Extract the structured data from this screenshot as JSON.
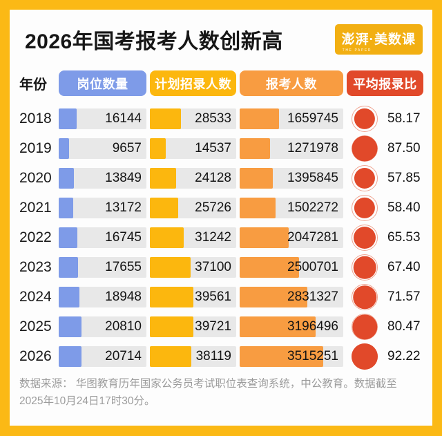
{
  "title": "2026年国考报考人数创新高",
  "logo": {
    "main": "澎湃·美数课",
    "sub": "THE PAPER"
  },
  "columns": {
    "year_label": "年份",
    "headers": [
      {
        "label": "岗位数量",
        "color": "#7E9BE8"
      },
      {
        "label": "计划招录人数",
        "color": "#FCB70E"
      },
      {
        "label": "报考人数",
        "color": "#F89C41"
      },
      {
        "label": "平均报录比",
        "color": "#E1492A"
      }
    ]
  },
  "chart_data": {
    "type": "bar",
    "orientation": "horizontal",
    "title": "2026年国考报考人数创新高",
    "categories": [
      "2018",
      "2019",
      "2020",
      "2021",
      "2022",
      "2023",
      "2024",
      "2025",
      "2026"
    ],
    "series": [
      {
        "name": "岗位数量",
        "color": "#7E9BE8",
        "values": [
          16144,
          9657,
          13849,
          13172,
          16745,
          17655,
          18948,
          20810,
          20714
        ]
      },
      {
        "name": "计划招录人数",
        "color": "#FCB70E",
        "values": [
          28533,
          14537,
          24128,
          25726,
          31242,
          37100,
          39561,
          39721,
          38119
        ]
      },
      {
        "name": "报考人数",
        "color": "#F89C41",
        "values": [
          1659745,
          1271978,
          1395845,
          1502272,
          2047281,
          2500701,
          2831327,
          3196496,
          3515251
        ]
      },
      {
        "name": "平均报录比",
        "color": "#E1492A",
        "values": [
          58.17,
          87.5,
          57.85,
          58.4,
          65.53,
          67.4,
          71.57,
          80.47,
          92.22
        ]
      }
    ],
    "layout": {
      "grid": false,
      "legend": "column-header-pills",
      "value_labels": "inside-bar-right",
      "bar_scale_max": {
        "岗位数量": 79000,
        "计划招录人数": 79000,
        "报考人数": 4350000
      },
      "ratio_circle_max": 92.22,
      "track_color": "#E8E8E8",
      "ratio_ring_color": "#F0A693"
    }
  },
  "footer": "数据来源： 华图教育历年国家公务员考试职位表查询系统，中公教育。数据截至2025年10月24日17时30分。"
}
